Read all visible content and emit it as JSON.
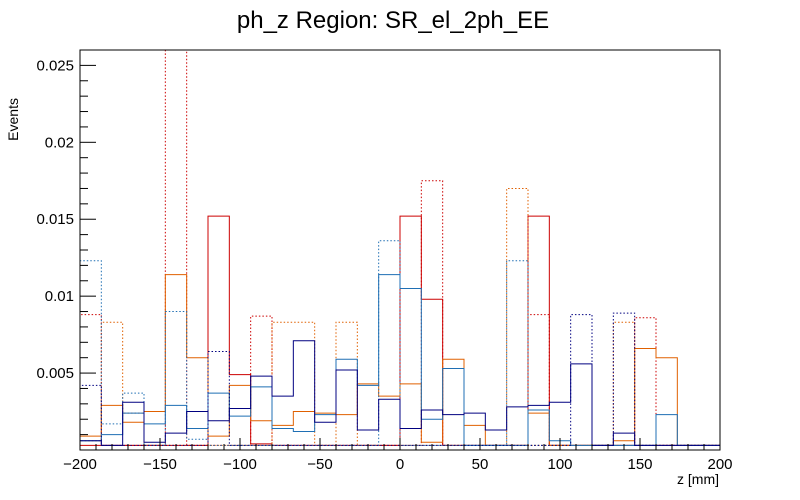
{
  "chart_data": {
    "type": "histogram",
    "title": "ph_z Region: SR_el_2ph_EE",
    "xlabel": "z [mm]",
    "ylabel": "Events",
    "xlim": [
      -200,
      200
    ],
    "ylim": [
      0,
      0.026
    ],
    "bin_width": 13.333,
    "x_ticks": [
      -200,
      -150,
      -100,
      -50,
      0,
      50,
      100,
      150,
      200
    ],
    "x_tick_labels": [
      "−200",
      "−150",
      "−100",
      "−50",
      "0",
      "50",
      "100",
      "150",
      "200"
    ],
    "y_ticks": [
      0.005,
      0.01,
      0.015,
      0.02,
      0.025
    ],
    "y_tick_labels": [
      "0.005",
      "0.01",
      "0.015",
      "0.02",
      "0.025"
    ],
    "grid": false,
    "legend": "none",
    "series": [
      {
        "color": "#cc0000",
        "style": "solid",
        "values": [
          0.0003,
          0.0003,
          0.0003,
          0.0003,
          0.0003,
          0.0003,
          0.0152,
          0.0049,
          0.0004,
          0.0003,
          0.0003,
          0.0003,
          0.0003,
          0.0003,
          0.0003,
          0.0152,
          0.0098,
          0.0003,
          0.0003,
          0.0003,
          0.0003,
          0.0152,
          0.0003,
          0.0003,
          0.0003,
          0.0003,
          0.0003,
          0.0003,
          0.0003,
          0.0003
        ]
      },
      {
        "color": "#cc0000",
        "style": "dotted",
        "values": [
          0.0088,
          0.0003,
          0.0003,
          0.0003,
          0.026,
          0.0003,
          0.0003,
          0.0003,
          0.0087,
          0.0003,
          0.0003,
          0.0003,
          0.0003,
          0.0003,
          0.0003,
          0.0003,
          0.0175,
          0.0003,
          0.0003,
          0.0003,
          0.0003,
          0.0088,
          0.0003,
          0.0003,
          0.0003,
          0.0003,
          0.0086,
          0.0003,
          0.0003,
          0.0003
        ]
      },
      {
        "color": "#e06000",
        "style": "solid",
        "values": [
          0.0009,
          0.0029,
          0.0018,
          0.0025,
          0.0114,
          0.006,
          0.0009,
          0.0042,
          0.0019,
          0.0016,
          0.0025,
          0.0024,
          0.0023,
          0.0043,
          0.0035,
          0.0043,
          0.0005,
          0.0059,
          0.0016,
          0.0003,
          0.0003,
          0.0024,
          0.0003,
          0.0003,
          0.0003,
          0.0006,
          0.0066,
          0.006,
          0.0003,
          0.0003
        ]
      },
      {
        "color": "#e06000",
        "style": "dotted",
        "values": [
          0.0006,
          0.0083,
          0.0024,
          0.0003,
          0.0003,
          0.0003,
          0.0003,
          0.0003,
          0.0003,
          0.0083,
          0.0083,
          0.0003,
          0.0083,
          0.0003,
          0.0003,
          0.0003,
          0.0003,
          0.0003,
          0.0003,
          0.0003,
          0.017,
          0.0003,
          0.0003,
          0.0003,
          0.0003,
          0.0083,
          0.0003,
          0.0003,
          0.0003,
          0.0003
        ]
      },
      {
        "color": "#1f6fb4",
        "style": "solid",
        "values": [
          0.0006,
          0.001,
          0.0024,
          0.0017,
          0.0029,
          0.0014,
          0.0037,
          0.0022,
          0.0041,
          0.0014,
          0.0012,
          0.0023,
          0.0059,
          0.0042,
          0.0114,
          0.0105,
          0.002,
          0.0053,
          0.0003,
          0.0003,
          0.0003,
          0.0026,
          0.0006,
          0.0003,
          0.0003,
          0.0003,
          0.0003,
          0.0023,
          0.0003,
          0.0003
        ]
      },
      {
        "color": "#1f6fb4",
        "style": "dotted",
        "values": [
          0.0123,
          0.0017,
          0.0037,
          0.0003,
          0.009,
          0.0007,
          0.0003,
          0.0003,
          0.0003,
          0.0003,
          0.0003,
          0.0003,
          0.0003,
          0.0003,
          0.0136,
          0.0003,
          0.0003,
          0.0003,
          0.0003,
          0.0003,
          0.0123,
          0.0003,
          0.0003,
          0.0003,
          0.0003,
          0.0003,
          0.0003,
          0.0003,
          0.0003,
          0.0003
        ]
      },
      {
        "color": "#000080",
        "style": "solid",
        "values": [
          0.0006,
          0.0003,
          0.0031,
          0.0005,
          0.0011,
          0.0025,
          0.0019,
          0.0027,
          0.0048,
          0.0035,
          0.0071,
          0.0018,
          0.0052,
          0.0013,
          0.0033,
          0.0014,
          0.0026,
          0.0023,
          0.0024,
          0.0013,
          0.0028,
          0.0029,
          0.0031,
          0.0056,
          0.0003,
          0.0011,
          0.0003,
          0.0003,
          0.0003,
          0.0003
        ]
      },
      {
        "color": "#000080",
        "style": "dotted",
        "values": [
          0.0042,
          0.0003,
          0.0003,
          0.0003,
          0.0003,
          0.0003,
          0.0064,
          0.0003,
          0.0003,
          0.0003,
          0.0003,
          0.0003,
          0.0003,
          0.0003,
          0.0003,
          0.0003,
          0.0003,
          0.0003,
          0.0003,
          0.0003,
          0.0003,
          0.0003,
          0.0003,
          0.0088,
          0.0003,
          0.0089,
          0.0003,
          0.0003,
          0.0003,
          0.0003
        ]
      }
    ]
  }
}
